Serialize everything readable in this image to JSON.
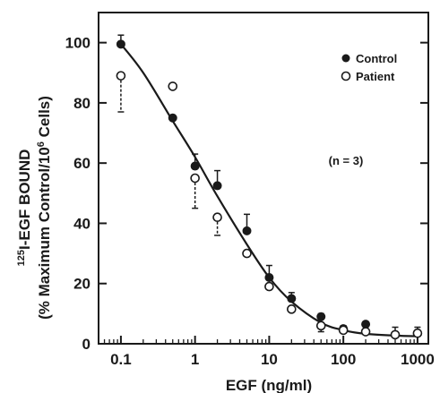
{
  "chart_data": {
    "type": "scatter",
    "x_scale": "log",
    "xlim": [
      0.05,
      1400
    ],
    "ylim": [
      0,
      110
    ],
    "x_ticks": [
      0.1,
      1,
      10,
      100,
      1000
    ],
    "x_tick_labels": [
      "0.1",
      "1",
      "10",
      "100",
      "1000"
    ],
    "y_ticks": [
      0,
      20,
      40,
      60,
      80,
      100
    ],
    "y_tick_labels": [
      "0",
      "20",
      "40",
      "60",
      "80",
      "100"
    ],
    "xlabel": "EGF (ng/ml)",
    "ylabel_line1_sup": "125",
    "ylabel_line1_main": "I-EGF BOUND",
    "ylabel_line2_a": "(% Maximum Control/10",
    "ylabel_line2_sup": "6",
    "ylabel_line2_b": " Cells)",
    "annotation": "(n = 3)",
    "legend_position": "top-right",
    "series": [
      {
        "name": "Control",
        "marker": "filled-circle",
        "errorbar_style": "solid",
        "x": [
          0.1,
          0.5,
          1,
          2,
          5,
          10,
          20,
          50,
          100,
          200,
          500,
          1000
        ],
        "y": [
          99.5,
          75,
          59,
          52.5,
          37.5,
          22,
          15,
          9,
          5,
          6.5,
          3,
          3.5
        ],
        "err": [
          3,
          0,
          4,
          5,
          5.5,
          4,
          2,
          1,
          1,
          0,
          2.5,
          2
        ]
      },
      {
        "name": "Patient",
        "marker": "open-circle",
        "errorbar_style": "dashed",
        "x": [
          0.1,
          0.5,
          1,
          2,
          5,
          10,
          20,
          50,
          100,
          200,
          500,
          1000
        ],
        "y": [
          89,
          85.5,
          55,
          42,
          30,
          19,
          11.5,
          6,
          4.5,
          4,
          3,
          3.5
        ],
        "err": [
          12,
          0,
          10,
          6,
          0,
          0,
          0,
          2,
          0,
          0,
          0,
          0
        ]
      }
    ],
    "fit_curve": {
      "x": [
        0.1,
        0.2,
        0.5,
        1,
        2,
        5,
        10,
        20,
        50,
        100,
        200,
        500,
        1000
      ],
      "y": [
        99.5,
        90,
        74,
        62,
        49,
        33,
        22,
        14,
        7,
        4.5,
        3.3,
        2.7,
        2.5
      ]
    }
  }
}
